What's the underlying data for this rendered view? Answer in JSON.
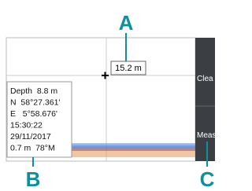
{
  "callouts": {
    "a": "A",
    "b": "B",
    "c": "C"
  },
  "measure_label": "15.2 m",
  "info_box": [
    "Depth  8.8 m",
    "N  58°27.361'",
    "E   5°58.676'",
    "15:30:22",
    "29/11/2017",
    "0.7 m  78°M"
  ],
  "menu": [
    "Clea",
    "Meas"
  ]
}
